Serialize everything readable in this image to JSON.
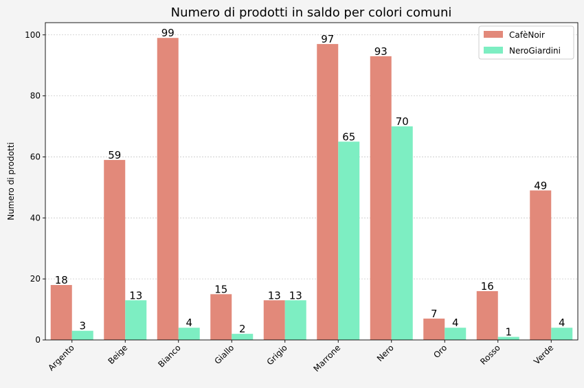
{
  "chart_data": {
    "type": "bar",
    "title": "Numero di prodotti in saldo per colori comuni",
    "xlabel": "",
    "ylabel": "Numero di prodotti",
    "ylim": [
      0,
      104
    ],
    "yticks": [
      0,
      20,
      40,
      60,
      80,
      100
    ],
    "grid": "horizontal dotted",
    "legend_position": "top-right",
    "categories": [
      "Argento",
      "Beige",
      "Bianco",
      "Giallo",
      "Grigio",
      "Marrone",
      "Nero",
      "Oro",
      "Rosso",
      "Verde"
    ],
    "series": [
      {
        "name": "CafèNoir",
        "color": "#e2897a",
        "values": [
          18,
          59,
          99,
          15,
          13,
          97,
          93,
          7,
          16,
          49
        ]
      },
      {
        "name": "NeroGiardini",
        "color": "#7deec2",
        "values": [
          3,
          13,
          4,
          2,
          13,
          65,
          70,
          4,
          1,
          4
        ]
      }
    ]
  }
}
